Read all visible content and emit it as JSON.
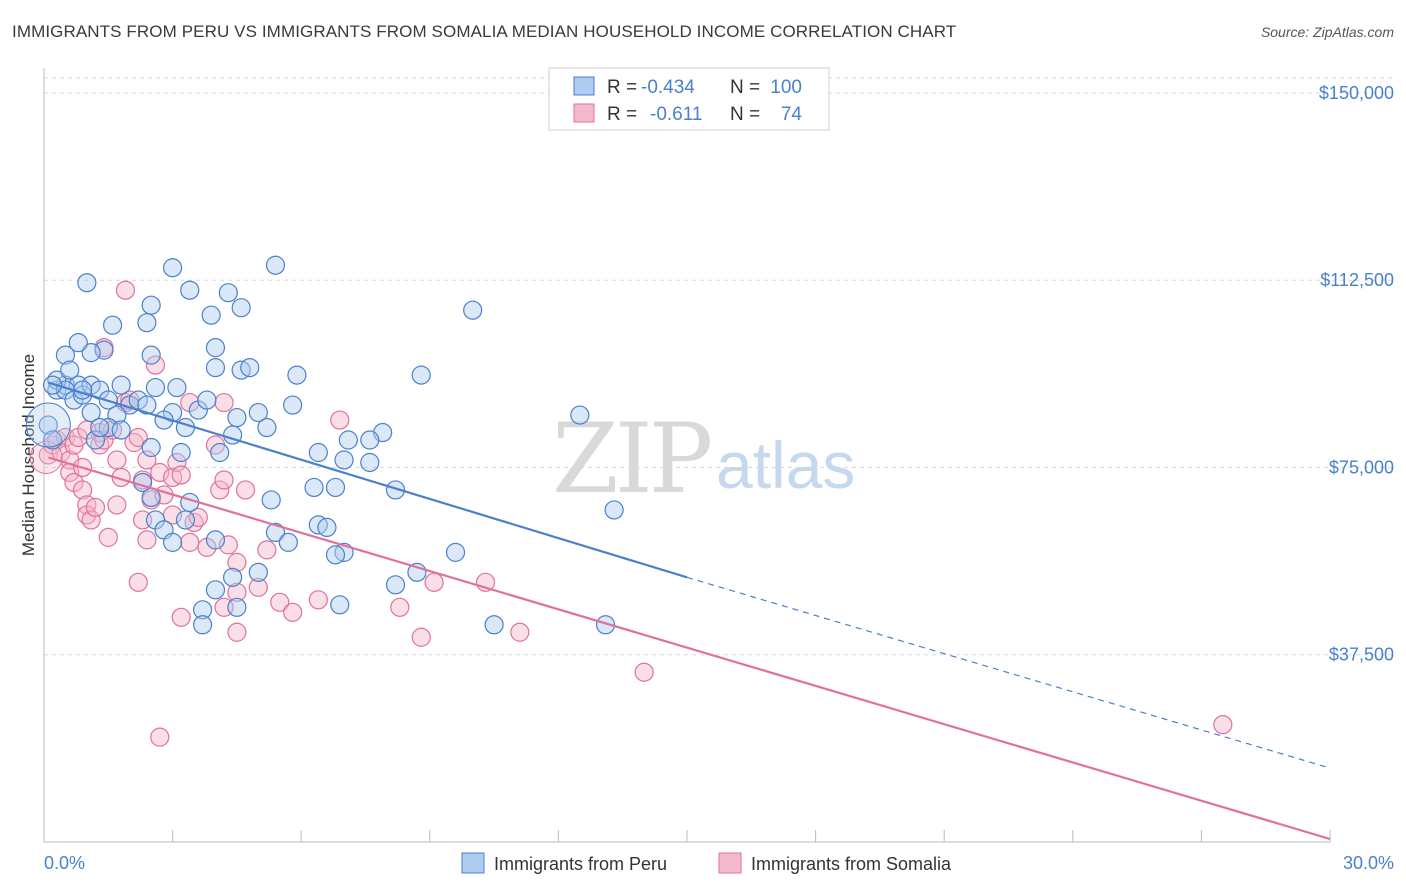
{
  "title": "IMMIGRANTS FROM PERU VS IMMIGRANTS FROM SOMALIA MEDIAN HOUSEHOLD INCOME CORRELATION CHART",
  "source": "Source: ZipAtlas.com",
  "watermark": {
    "zip": "ZIP",
    "atlas": "atlas"
  },
  "colors": {
    "peru": "#4a80cc",
    "peru_fill": "#aecbf0",
    "somalia": "#e0719a",
    "somalia_fill": "#f4b9cc",
    "grid": "#d8d8d8",
    "tick_text": "#4a80cc"
  },
  "legend": {
    "rows": [
      {
        "r_label": "R =",
        "r_value": "-0.434",
        "n_label": "N =",
        "n_value": "100"
      },
      {
        "r_label": "R =",
        "r_value": "-0.611",
        "n_label": "N =",
        "n_value": "74"
      }
    ]
  },
  "chart_data": {
    "type": "scatter",
    "title": "IMMIGRANTS FROM PERU VS IMMIGRANTS FROM SOMALIA MEDIAN HOUSEHOLD INCOME CORRELATION CHART",
    "xlabel": "",
    "ylabel": "Median Household Income",
    "xlim": [
      0,
      30
    ],
    "ylim": [
      0,
      155000
    ],
    "x_tick_labels": [
      "0.0%",
      "30.0%"
    ],
    "y_ticks": [
      37500,
      75000,
      112500,
      150000
    ],
    "y_tick_labels": [
      "$37,500",
      "$75,000",
      "$112,500",
      "$150,000"
    ],
    "grid": true,
    "legend_position": "top-center",
    "series": [
      {
        "name": "Immigrants from Peru",
        "r": -0.434,
        "n": 100,
        "trend": {
          "x0": 0.1,
          "y0": 92000,
          "x1": 15.0,
          "y1": 53000,
          "dash_to_x": 30.0,
          "dash_to_y": 14800
        },
        "points": [
          [
            0.1,
            83500
          ],
          [
            0.2,
            80500
          ],
          [
            0.3,
            90500
          ],
          [
            0.5,
            91500
          ],
          [
            0.3,
            92500
          ],
          [
            0.8,
            91500
          ],
          [
            0.5,
            90500
          ],
          [
            0.7,
            88500
          ],
          [
            0.9,
            89500
          ],
          [
            1.1,
            91500
          ],
          [
            1.3,
            90500
          ],
          [
            1.8,
            91500
          ],
          [
            1.5,
            88500
          ],
          [
            1.1,
            86000
          ],
          [
            2.0,
            87500
          ],
          [
            2.2,
            88500
          ],
          [
            1.7,
            85500
          ],
          [
            1.5,
            83000
          ],
          [
            1.2,
            80500
          ],
          [
            1.8,
            82500
          ],
          [
            2.4,
            87500
          ],
          [
            2.6,
            91000
          ],
          [
            3.1,
            91000
          ],
          [
            3.0,
            86000
          ],
          [
            3.6,
            86500
          ],
          [
            3.8,
            88500
          ],
          [
            4.6,
            94500
          ],
          [
            4.8,
            95000
          ],
          [
            4.5,
            85000
          ],
          [
            5.0,
            86000
          ],
          [
            5.2,
            83000
          ],
          [
            4.4,
            81500
          ],
          [
            3.3,
            83000
          ],
          [
            3.2,
            78000
          ],
          [
            4.1,
            78000
          ],
          [
            2.5,
            79000
          ],
          [
            2.3,
            72000
          ],
          [
            2.5,
            69000
          ],
          [
            3.3,
            64500
          ],
          [
            2.6,
            64500
          ],
          [
            2.8,
            62500
          ],
          [
            3.0,
            60000
          ],
          [
            3.4,
            68000
          ],
          [
            4.0,
            60500
          ],
          [
            5.3,
            68500
          ],
          [
            5.4,
            62000
          ],
          [
            5.7,
            60000
          ],
          [
            6.3,
            71000
          ],
          [
            6.4,
            63500
          ],
          [
            6.6,
            63000
          ],
          [
            6.8,
            71000
          ],
          [
            7.1,
            80500
          ],
          [
            7.0,
            76500
          ],
          [
            7.6,
            76000
          ],
          [
            7.9,
            82000
          ],
          [
            8.2,
            70500
          ],
          [
            7.0,
            58000
          ],
          [
            6.8,
            57500
          ],
          [
            6.9,
            47500
          ],
          [
            5.0,
            54000
          ],
          [
            4.4,
            53000
          ],
          [
            4.0,
            50500
          ],
          [
            4.5,
            47000
          ],
          [
            3.7,
            46500
          ],
          [
            3.7,
            43500
          ],
          [
            8.2,
            51500
          ],
          [
            8.7,
            54000
          ],
          [
            9.6,
            58000
          ],
          [
            10.5,
            43500
          ],
          [
            13.1,
            43500
          ],
          [
            13.3,
            66500
          ],
          [
            12.5,
            85500
          ],
          [
            8.8,
            93500
          ],
          [
            10.0,
            106500
          ],
          [
            5.4,
            115500
          ],
          [
            4.3,
            110000
          ],
          [
            4.6,
            107000
          ],
          [
            3.4,
            110500
          ],
          [
            3.0,
            115000
          ],
          [
            2.5,
            107500
          ],
          [
            2.4,
            104000
          ],
          [
            1.6,
            103500
          ],
          [
            1.4,
            98500
          ],
          [
            1.1,
            98000
          ],
          [
            0.8,
            100000
          ],
          [
            0.5,
            97500
          ],
          [
            0.6,
            94500
          ],
          [
            1.0,
            112000
          ],
          [
            2.5,
            97500
          ],
          [
            3.9,
            105500
          ],
          [
            4.0,
            99000
          ],
          [
            4.0,
            95000
          ],
          [
            5.9,
            93500
          ],
          [
            5.8,
            87500
          ],
          [
            7.6,
            80500
          ],
          [
            0.2,
            91500
          ],
          [
            0.9,
            90500
          ],
          [
            2.8,
            84500
          ],
          [
            6.4,
            78000
          ],
          [
            1.3,
            83000
          ]
        ]
      },
      {
        "name": "Immigrants from Somalia",
        "r": -0.611,
        "n": 74,
        "trend": {
          "x0": 0.1,
          "y0": 77000,
          "x1": 30.0,
          "y1": 600
        },
        "points": [
          [
            0.1,
            77500
          ],
          [
            0.2,
            79500
          ],
          [
            0.3,
            80500
          ],
          [
            0.5,
            81000
          ],
          [
            0.4,
            78000
          ],
          [
            0.6,
            76500
          ],
          [
            0.6,
            74000
          ],
          [
            0.7,
            79500
          ],
          [
            0.8,
            81000
          ],
          [
            0.7,
            72000
          ],
          [
            0.9,
            70500
          ],
          [
            0.9,
            75000
          ],
          [
            1.0,
            67500
          ],
          [
            1.0,
            65500
          ],
          [
            1.1,
            64500
          ],
          [
            1.2,
            67000
          ],
          [
            1.3,
            79500
          ],
          [
            1.3,
            82000
          ],
          [
            1.4,
            80500
          ],
          [
            1.6,
            82500
          ],
          [
            1.7,
            76500
          ],
          [
            1.8,
            73000
          ],
          [
            1.7,
            67500
          ],
          [
            1.5,
            61000
          ],
          [
            1.9,
            88000
          ],
          [
            2.1,
            80000
          ],
          [
            2.2,
            81000
          ],
          [
            2.4,
            76500
          ],
          [
            2.3,
            72500
          ],
          [
            2.5,
            68500
          ],
          [
            2.3,
            64500
          ],
          [
            2.4,
            60500
          ],
          [
            2.8,
            69500
          ],
          [
            2.7,
            74000
          ],
          [
            3.0,
            73000
          ],
          [
            3.1,
            76000
          ],
          [
            3.2,
            73500
          ],
          [
            3.0,
            65500
          ],
          [
            3.5,
            64000
          ],
          [
            3.4,
            60000
          ],
          [
            3.6,
            65000
          ],
          [
            3.8,
            59000
          ],
          [
            4.1,
            70500
          ],
          [
            4.2,
            72500
          ],
          [
            4.3,
            59500
          ],
          [
            4.5,
            56000
          ],
          [
            4.7,
            70500
          ],
          [
            4.5,
            50000
          ],
          [
            4.2,
            47000
          ],
          [
            4.5,
            42000
          ],
          [
            5.0,
            51000
          ],
          [
            5.2,
            58500
          ],
          [
            5.5,
            48000
          ],
          [
            5.8,
            46000
          ],
          [
            6.4,
            48500
          ],
          [
            6.9,
            84500
          ],
          [
            4.2,
            88000
          ],
          [
            3.4,
            88000
          ],
          [
            4.0,
            79500
          ],
          [
            2.6,
            95500
          ],
          [
            1.4,
            99000
          ],
          [
            1.9,
            110500
          ],
          [
            2.0,
            88500
          ],
          [
            2.2,
            52000
          ],
          [
            3.2,
            45000
          ],
          [
            2.7,
            21000
          ],
          [
            9.1,
            52000
          ],
          [
            10.3,
            52000
          ],
          [
            8.3,
            47000
          ],
          [
            8.8,
            41000
          ],
          [
            11.1,
            42000
          ],
          [
            14.0,
            34000
          ],
          [
            27.5,
            23500
          ],
          [
            1.0,
            82500
          ]
        ]
      }
    ]
  },
  "bottom_legend": [
    {
      "label": "Immigrants from Peru"
    },
    {
      "label": "Immigrants from Somalia"
    }
  ]
}
